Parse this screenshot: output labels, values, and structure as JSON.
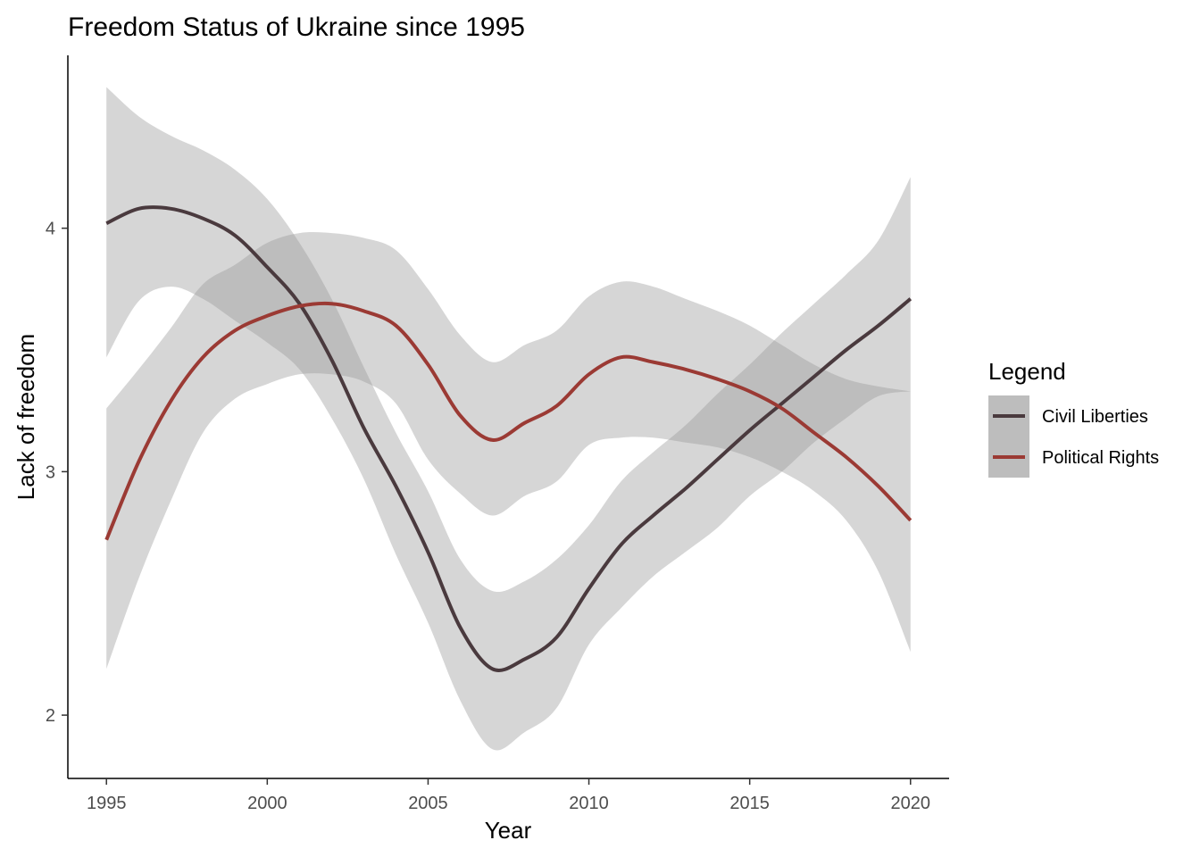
{
  "chart_data": {
    "type": "line",
    "title": "Freedom Status of Ukraine since 1995",
    "xlabel": "Year",
    "ylabel": "Lack of freedom",
    "xlim": [
      1993.8,
      2021.2
    ],
    "ylim": [
      1.74,
      4.71
    ],
    "x_ticks": [
      1995,
      2000,
      2005,
      2010,
      2015,
      2020
    ],
    "y_ticks": [
      2,
      3,
      4
    ],
    "grid": false,
    "legend": {
      "title": "Legend",
      "position": "right"
    },
    "series": [
      {
        "name": "Civil Liberties",
        "color": "#4a3a3e",
        "x": [
          1995,
          1996,
          1997,
          1998,
          1999,
          2000,
          2001,
          2002,
          2003,
          2004,
          2005,
          2006,
          2007,
          2008,
          2009,
          2010,
          2011,
          2012,
          2013,
          2014,
          2015,
          2016,
          2017,
          2018,
          2019,
          2020
        ],
        "y": [
          4.02,
          4.08,
          4.08,
          4.04,
          3.97,
          3.84,
          3.69,
          3.46,
          3.18,
          2.94,
          2.67,
          2.36,
          2.19,
          2.23,
          2.32,
          2.52,
          2.7,
          2.82,
          2.93,
          3.05,
          3.17,
          3.28,
          3.39,
          3.5,
          3.6,
          3.71
        ],
        "ci_lower": [
          3.47,
          3.7,
          3.76,
          3.71,
          3.62,
          3.53,
          3.42,
          3.22,
          2.97,
          2.66,
          2.38,
          2.06,
          1.86,
          1.93,
          2.03,
          2.29,
          2.44,
          2.57,
          2.67,
          2.77,
          2.9,
          3.0,
          3.12,
          3.22,
          3.31,
          3.33
        ],
        "ci_upper": [
          4.58,
          4.46,
          4.38,
          4.32,
          4.24,
          4.12,
          3.94,
          3.71,
          3.43,
          3.16,
          2.92,
          2.64,
          2.51,
          2.55,
          2.64,
          2.78,
          2.96,
          3.08,
          3.19,
          3.32,
          3.44,
          3.57,
          3.69,
          3.81,
          3.95,
          4.21
        ]
      },
      {
        "name": "Political Rights",
        "color": "#9b3a34",
        "x": [
          1995,
          1996,
          1997,
          1998,
          1999,
          2000,
          2001,
          2002,
          2003,
          2004,
          2005,
          2006,
          2007,
          2008,
          2009,
          2010,
          2011,
          2012,
          2013,
          2014,
          2015,
          2016,
          2017,
          2018,
          2019,
          2020
        ],
        "y": [
          2.72,
          3.04,
          3.29,
          3.47,
          3.58,
          3.64,
          3.68,
          3.69,
          3.66,
          3.6,
          3.44,
          3.23,
          3.13,
          3.2,
          3.27,
          3.4,
          3.47,
          3.45,
          3.42,
          3.38,
          3.33,
          3.26,
          3.16,
          3.06,
          2.94,
          2.8
        ],
        "ci_lower": [
          2.19,
          2.56,
          2.88,
          3.16,
          3.3,
          3.36,
          3.4,
          3.4,
          3.37,
          3.28,
          3.05,
          2.91,
          2.82,
          2.9,
          2.96,
          3.11,
          3.14,
          3.14,
          3.12,
          3.1,
          3.06,
          3.0,
          2.92,
          2.8,
          2.59,
          2.26
        ],
        "ci_upper": [
          3.26,
          3.42,
          3.59,
          3.77,
          3.85,
          3.94,
          3.98,
          3.98,
          3.96,
          3.91,
          3.75,
          3.56,
          3.45,
          3.52,
          3.58,
          3.72,
          3.78,
          3.76,
          3.71,
          3.66,
          3.6,
          3.52,
          3.44,
          3.38,
          3.35,
          3.33
        ]
      }
    ]
  }
}
